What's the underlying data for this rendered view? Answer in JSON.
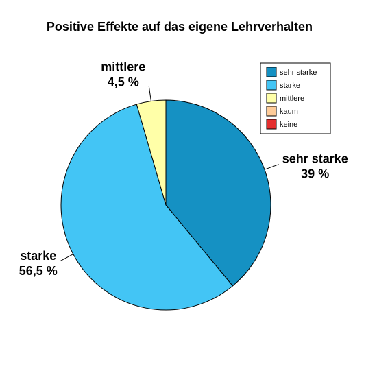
{
  "chart_data": {
    "type": "pie",
    "title": "Positive Effekte auf das eigene Lehrverhalten",
    "legend_position": "top-right",
    "categories": [
      "sehr starke",
      "starke",
      "mittlere",
      "kaum",
      "keine"
    ],
    "values": [
      39,
      56.5,
      4.5,
      0,
      0
    ],
    "value_labels": [
      "39 %",
      "56,5 %",
      "4,5 %",
      "",
      ""
    ],
    "colors": [
      "#1591C3",
      "#43C5F5",
      "#FFFFA8",
      "#FFCC99",
      "#E53030"
    ]
  }
}
